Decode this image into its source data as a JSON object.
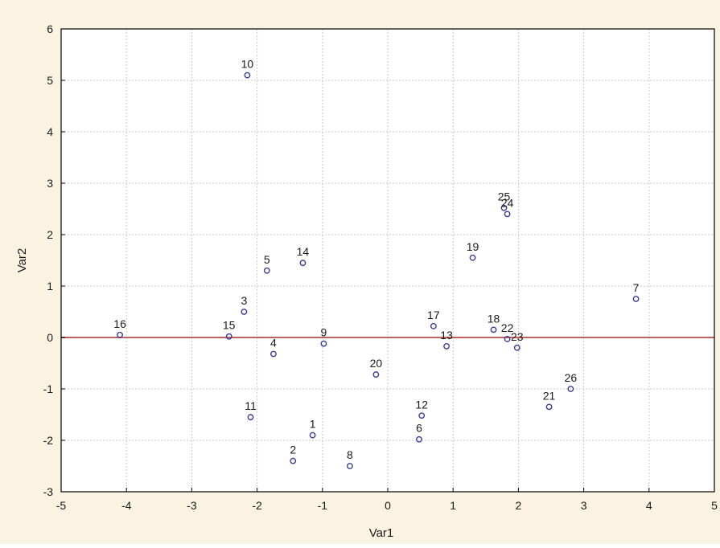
{
  "chart_data": {
    "type": "scatter",
    "title": "",
    "xlabel": "Var1",
    "ylabel": "Var2",
    "xlim": [
      -5,
      5
    ],
    "ylim": [
      -3,
      6
    ],
    "xticks": [
      "-5",
      "-4",
      "-3",
      "-2",
      "-1",
      "0",
      "1",
      "2",
      "3",
      "4",
      "5"
    ],
    "yticks": [
      "-3",
      "-2",
      "-1",
      "0",
      "1",
      "2",
      "3",
      "4",
      "5",
      "6"
    ],
    "grid": true,
    "reference_line_y": 0,
    "points": [
      {
        "label": "1",
        "x": -1.15,
        "y": -1.9
      },
      {
        "label": "2",
        "x": -1.45,
        "y": -2.4
      },
      {
        "label": "3",
        "x": -2.2,
        "y": 0.5
      },
      {
        "label": "4",
        "x": -1.75,
        "y": -0.32
      },
      {
        "label": "5",
        "x": -1.85,
        "y": 1.3
      },
      {
        "label": "6",
        "x": 0.48,
        "y": -1.98
      },
      {
        "label": "7",
        "x": 3.8,
        "y": 0.75
      },
      {
        "label": "8",
        "x": -0.58,
        "y": -2.5
      },
      {
        "label": "9",
        "x": -0.98,
        "y": -0.12
      },
      {
        "label": "10",
        "x": -2.15,
        "y": 5.1
      },
      {
        "label": "11",
        "x": -2.1,
        "y": -1.55
      },
      {
        "label": "12",
        "x": 0.52,
        "y": -1.52
      },
      {
        "label": "13",
        "x": 0.9,
        "y": -0.17
      },
      {
        "label": "14",
        "x": -1.3,
        "y": 1.45
      },
      {
        "label": "15",
        "x": -2.43,
        "y": 0.02
      },
      {
        "label": "16",
        "x": -4.1,
        "y": 0.05
      },
      {
        "label": "17",
        "x": 0.7,
        "y": 0.22
      },
      {
        "label": "18",
        "x": 1.62,
        "y": 0.15
      },
      {
        "label": "19",
        "x": 1.3,
        "y": 1.55
      },
      {
        "label": "20",
        "x": -0.18,
        "y": -0.72
      },
      {
        "label": "21",
        "x": 2.47,
        "y": -1.35
      },
      {
        "label": "22",
        "x": 1.83,
        "y": -0.03
      },
      {
        "label": "23",
        "x": 1.98,
        "y": -0.2
      },
      {
        "label": "24",
        "x": 1.83,
        "y": 2.4
      },
      {
        "label": "25",
        "x": 1.78,
        "y": 2.52
      },
      {
        "label": "26",
        "x": 2.8,
        "y": -1.0
      }
    ],
    "colors": {
      "page_background": "#fbf3e1",
      "plot_background": "#ffffff",
      "marker": "#3a3a9a",
      "reference_line": "#c06060",
      "grid": "#c8c8c8",
      "text": "#1a1a1a"
    }
  }
}
